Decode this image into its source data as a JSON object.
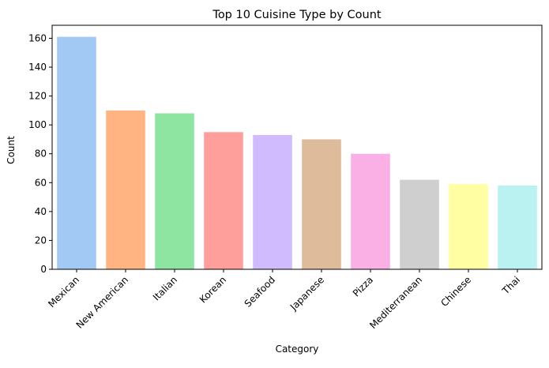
{
  "chart_data": {
    "type": "bar",
    "title": "Top 10 Cuisine Type by Count",
    "xlabel": "Category",
    "ylabel": "Count",
    "categories": [
      "Mexican",
      "New American",
      "Italian",
      "Korean",
      "Seafood",
      "Japanese",
      "Pizza",
      "Mediterranean",
      "Chinese",
      "Thai"
    ],
    "values": [
      161,
      110,
      108,
      95,
      93,
      90,
      80,
      62,
      59,
      58
    ],
    "colors": [
      "#a1c9f4",
      "#ffb482",
      "#8de5a1",
      "#ff9f9b",
      "#d0bbff",
      "#debb9b",
      "#fab0e4",
      "#cfcfcf",
      "#fffea3",
      "#b9f2f0"
    ],
    "yticks": [
      0,
      20,
      40,
      60,
      80,
      100,
      120,
      140,
      160
    ],
    "ylim": [
      0,
      169
    ],
    "grid": false,
    "legend": "none"
  }
}
